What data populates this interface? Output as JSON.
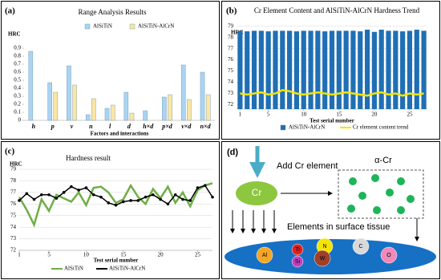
{
  "chart_data": [
    {
      "type": "bar",
      "panel_label": "(a)",
      "title": "Range Analysis Results",
      "y_label": "HRC",
      "x_label": "Factors and interactions",
      "categories": [
        "h",
        "p",
        "v",
        "n",
        "l",
        "d",
        "h×d",
        "p×d",
        "v×d",
        "n×d"
      ],
      "series": [
        {
          "name": "AlSiTiN",
          "color": "#a9d4f2",
          "values": [
            0.86,
            0.47,
            0.68,
            0.07,
            0.15,
            0.35,
            0.12,
            0.29,
            0.69,
            0.6
          ]
        },
        {
          "name": "AlSiTiN-AlCrN",
          "color": "#fbe6a2",
          "values": [
            null,
            0.35,
            0.44,
            0.27,
            0.19,
            0.09,
            null,
            0.32,
            0.26,
            0.32
          ]
        }
      ],
      "ylim": [
        0,
        0.9
      ],
      "yticks": [
        0,
        0.1,
        0.2,
        0.3,
        0.4,
        0.5,
        0.6,
        0.7,
        0.8,
        0.9
      ],
      "grid": false,
      "legend": "top"
    },
    {
      "type": "bar",
      "panel_label": "(b)",
      "title": "Cr Element Content and AlSiTiN-AlCrN Hardness Trend",
      "y_label": "HRC",
      "x_label": "Test serial number",
      "x": [
        1,
        2,
        3,
        4,
        5,
        6,
        7,
        8,
        9,
        10,
        11,
        12,
        13,
        14,
        15,
        16,
        17,
        18,
        19,
        20,
        21,
        22,
        23,
        24,
        25,
        26,
        27
      ],
      "series": [
        {
          "name": "AlSiTiN-AlCrN",
          "type": "bar",
          "color": "#1f6fb4",
          "values": [
            78.6,
            78.55,
            78.6,
            78.6,
            78.55,
            78.6,
            78.6,
            78.6,
            78.55,
            78.6,
            78.6,
            78.6,
            78.55,
            78.6,
            78.6,
            78.6,
            78.6,
            78.55,
            78.7,
            78.5,
            78.7,
            78.6,
            78.6,
            78.55,
            78.6,
            78.7,
            78.6
          ]
        },
        {
          "name": "Cr element content trend",
          "type": "line",
          "color": "#f5e400",
          "values": [
            73.0,
            72.9,
            73.0,
            73.1,
            72.9,
            73.0,
            73.3,
            73.2,
            73.0,
            72.9,
            73.0,
            73.1,
            73.0,
            72.9,
            73.0,
            73.1,
            73.0,
            72.9,
            72.8,
            73.0,
            73.1,
            72.9,
            73.0,
            72.8,
            73.0,
            72.9,
            73.0
          ]
        }
      ],
      "xlim": [
        0.5,
        27.5
      ],
      "xticks": [
        1,
        5,
        10,
        15,
        20,
        25
      ],
      "ylim": [
        71.6,
        79.2
      ],
      "yticks": [
        72,
        73,
        74,
        75,
        76,
        77,
        78,
        79
      ],
      "grid": true,
      "legend": "bottom"
    },
    {
      "type": "line",
      "panel_label": "(c)",
      "title": "Hardness result",
      "y_label": "HRC",
      "x_label": "Test serial number",
      "x": [
        1,
        2,
        3,
        4,
        5,
        6,
        7,
        8,
        9,
        10,
        11,
        12,
        13,
        14,
        15,
        16,
        17,
        18,
        19,
        20,
        21,
        22,
        23,
        24,
        25,
        26,
        27
      ],
      "series": [
        {
          "name": "AlSiTiN",
          "color": "#70ad47",
          "markers": false,
          "values": [
            76.6,
            75.5,
            74.2,
            76.4,
            75.4,
            76.8,
            76.5,
            76.2,
            77.0,
            75.9,
            77.4,
            77.5,
            77.0,
            76.1,
            76.4,
            77.6,
            76.6,
            76.0,
            77.3,
            76.5,
            77.5,
            76.1,
            77.0,
            75.8,
            77.2,
            77.6,
            77.8
          ]
        },
        {
          "name": "AlSiTiN-AlCrN",
          "color": "#000000",
          "markers": true,
          "values": [
            76.3,
            76.9,
            76.4,
            76.8,
            76.8,
            76.5,
            77.0,
            77.5,
            77.2,
            77.4,
            76.8,
            76.6,
            76.1,
            75.9,
            76.2,
            76.3,
            76.3,
            76.6,
            76.8,
            76.4,
            76.0,
            76.8,
            76.4,
            76.3,
            77.4,
            77.6,
            76.6
          ]
        }
      ],
      "xlim": [
        1,
        27
      ],
      "xticks": [
        1,
        5,
        10,
        15,
        20,
        25
      ],
      "ylim": [
        72,
        79
      ],
      "yticks": [
        72,
        73,
        74,
        75,
        76,
        77,
        78,
        79
      ],
      "grid": true,
      "legend": "bottom"
    }
  ],
  "diagram": {
    "panel_label": "(d)",
    "add_label": "Add Cr element",
    "source": "Cr",
    "phase": "α-Cr",
    "surface_label": "Elements in surface tissue",
    "elements": [
      "Al",
      "Ti",
      "N",
      "C",
      "Si",
      "W",
      "O"
    ]
  }
}
